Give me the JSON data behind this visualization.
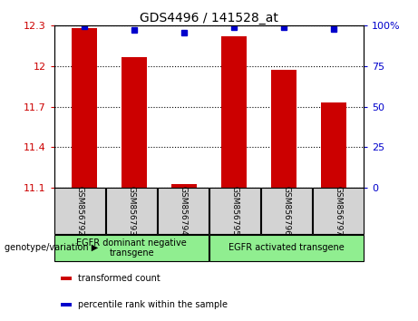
{
  "title": "GDS4496 / 141528_at",
  "samples": [
    "GSM856792",
    "GSM856793",
    "GSM856794",
    "GSM856795",
    "GSM856796",
    "GSM856797"
  ],
  "red_values": [
    12.28,
    12.07,
    11.13,
    12.22,
    11.97,
    11.73
  ],
  "blue_values": [
    99.5,
    97.5,
    95.5,
    99.0,
    99.0,
    98.0
  ],
  "ylim_left": [
    11.1,
    12.3
  ],
  "ylim_right": [
    0,
    100
  ],
  "yticks_left": [
    11.1,
    11.4,
    11.7,
    12.0,
    12.3
  ],
  "yticks_right": [
    0,
    25,
    50,
    75,
    100
  ],
  "ytick_labels_left": [
    "11.1",
    "11.4",
    "11.7",
    "12",
    "12.3"
  ],
  "ytick_labels_right": [
    "0",
    "25",
    "50",
    "75",
    "100%"
  ],
  "groups": [
    {
      "label": "EGFR dominant negative\ntransgene",
      "indices": [
        0,
        1,
        2
      ]
    },
    {
      "label": "EGFR activated transgene",
      "indices": [
        3,
        4,
        5
      ]
    }
  ],
  "group_color": "#90EE90",
  "sample_box_color": "#d3d3d3",
  "bar_color": "#CC0000",
  "dot_color": "#0000CC",
  "bar_width": 0.5,
  "base_value": 11.1,
  "legend_entries": [
    "transformed count",
    "percentile rank within the sample"
  ],
  "legend_colors": [
    "#CC0000",
    "#0000CC"
  ],
  "genotype_label": "genotype/variation",
  "tick_color_left": "#CC0000",
  "tick_color_right": "#0000CC",
  "grid_linestyle": ":",
  "grid_linewidth": 0.8
}
